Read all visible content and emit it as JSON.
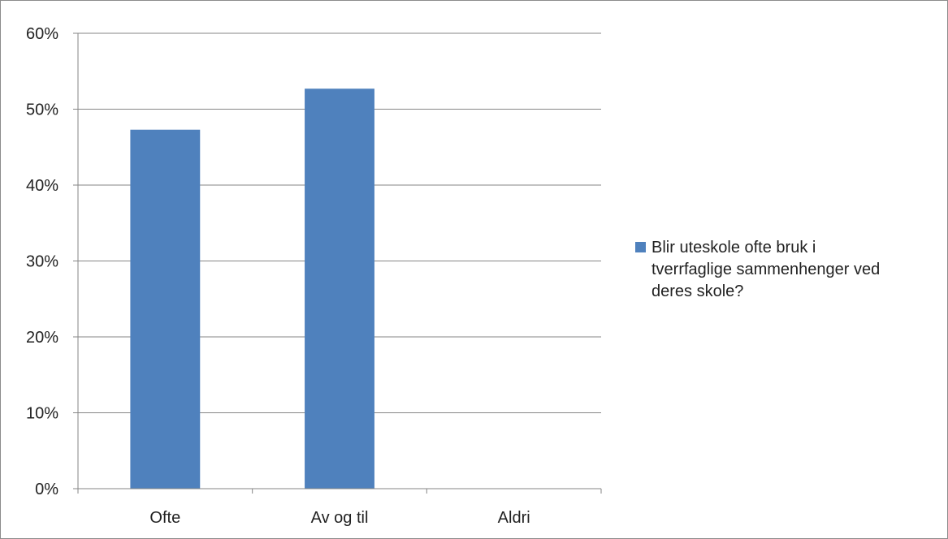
{
  "chart_data": {
    "type": "bar",
    "categories": [
      "Ofte",
      "Av og til",
      "Aldri"
    ],
    "series": [
      {
        "name": "Blir uteskole ofte bruk i tverrfaglige sammenhenger ved deres skole?",
        "values": [
          47.3,
          52.7,
          0
        ],
        "color": "#4f81bd"
      }
    ],
    "ylim": [
      0,
      60
    ],
    "yticks": [
      "0%",
      "10%",
      "20%",
      "30%",
      "40%",
      "50%",
      "60%"
    ],
    "grid": true,
    "legend_position": "right"
  }
}
